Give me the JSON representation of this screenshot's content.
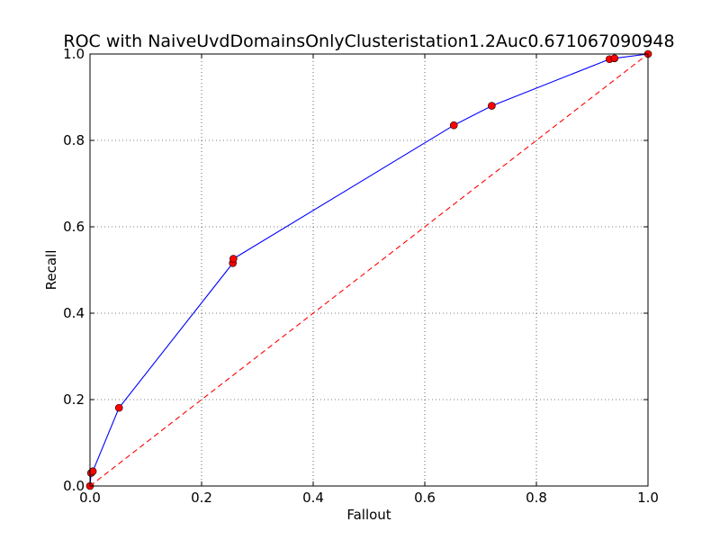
{
  "chart_data": {
    "type": "line",
    "title": "ROC with NaiveUvdDomainsOnlyClusteristation1.2Auc0.671067090948",
    "xlabel": "Fallout",
    "ylabel": "Recall",
    "xlim": [
      0.0,
      1.0
    ],
    "ylim": [
      0.0,
      1.0
    ],
    "xticks": [
      "0.0",
      "0.2",
      "0.4",
      "0.6",
      "0.8",
      "1.0"
    ],
    "yticks": [
      "0.0",
      "0.2",
      "0.4",
      "0.6",
      "0.8",
      "1.0"
    ],
    "grid": true,
    "series": [
      {
        "style": "solid",
        "color": "#0000ff",
        "markers": true,
        "marker_color": "#ff0000",
        "x": [
          0.0,
          0.002,
          0.005,
          0.052,
          0.256,
          0.257,
          0.652,
          0.72,
          0.931,
          0.94,
          1.0
        ],
        "y": [
          0.0,
          0.03,
          0.034,
          0.181,
          0.516,
          0.526,
          0.835,
          0.88,
          0.988,
          0.99,
          1.0
        ]
      },
      {
        "style": "dashed",
        "color": "#ff0000",
        "markers": false,
        "x": [
          0.0,
          1.0
        ],
        "y": [
          0.0,
          1.0
        ]
      }
    ]
  }
}
